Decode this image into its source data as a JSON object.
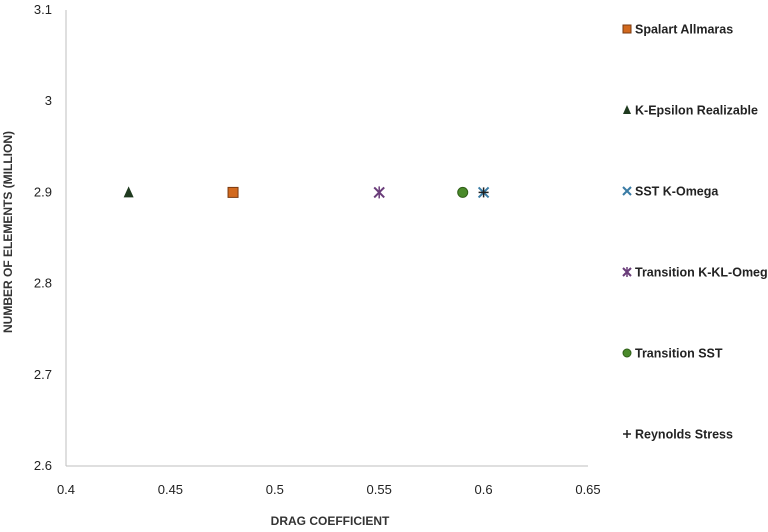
{
  "chart_data": {
    "type": "scatter",
    "xlabel": "DRAG COEFFICIENT",
    "ylabel": "NUMBER OF ELEMENTS (MILLION)",
    "xlim": [
      0.4,
      0.65
    ],
    "ylim": [
      2.6,
      3.1
    ],
    "xticks": [
      "0.4",
      "0.45",
      "0.5",
      "0.55",
      "0.6",
      "0.65"
    ],
    "yticks": [
      "2.6",
      "2.7",
      "2.8",
      "2.9",
      "3",
      "3.1"
    ],
    "grid": false,
    "legend_position": "right",
    "series": [
      {
        "name": "Spalart Allmaras",
        "marker": "square",
        "color": "#d2691e",
        "x": [
          0.48
        ],
        "y": [
          2.9
        ]
      },
      {
        "name": "K-Epsilon Realizable",
        "marker": "triangle",
        "color": "#1f3a1f",
        "x": [
          0.43
        ],
        "y": [
          2.9
        ]
      },
      {
        "name": "SST K-Omega",
        "marker": "x",
        "color": "#3a7ca5",
        "x": [
          0.6
        ],
        "y": [
          2.9
        ]
      },
      {
        "name": "Transition K-KL-Omega",
        "marker": "star",
        "color": "#6a3d7a",
        "x": [
          0.55
        ],
        "y": [
          2.9
        ]
      },
      {
        "name": "Transition SST",
        "marker": "circle",
        "color": "#4a8a2a",
        "x": [
          0.59
        ],
        "y": [
          2.9
        ]
      },
      {
        "name": "Reynolds Stress",
        "marker": "plus",
        "color": "#222222",
        "x": [
          0.6
        ],
        "y": [
          2.9
        ]
      }
    ]
  }
}
